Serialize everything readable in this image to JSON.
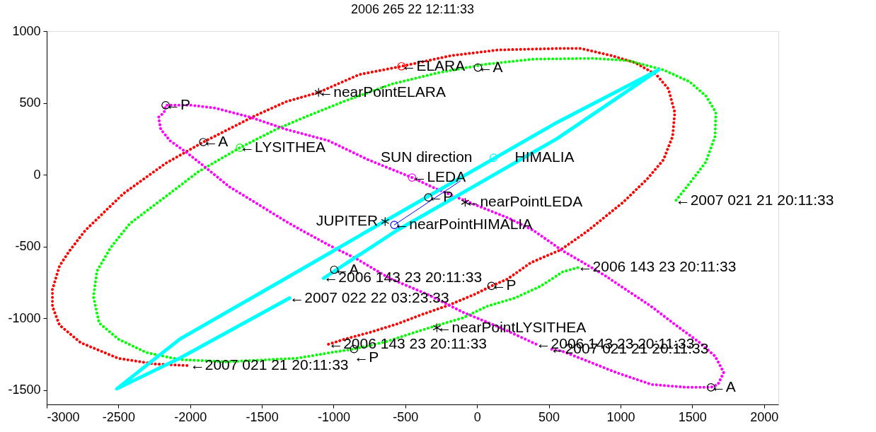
{
  "chart_data": {
    "type": "line",
    "title": "2006 265 22 12:11:33",
    "xlim": [
      -3000,
      2100
    ],
    "ylim": [
      -1600,
      1000
    ],
    "xticks": [
      -3000,
      -2500,
      -2000,
      -1500,
      -1000,
      -500,
      0,
      500,
      1000,
      1500,
      2000
    ],
    "yticks": [
      -1500,
      -1000,
      -500,
      0,
      500,
      1000
    ],
    "grid": false,
    "series": [
      {
        "line_style": "dotted",
        "color": "#ff0000",
        "x": [
          -1036,
          -922,
          -740,
          -562,
          -379,
          -196,
          -19,
          100,
          213,
          376,
          583,
          766,
          1018,
          1186,
          1299,
          1363,
          1378,
          1334,
          1250,
          1102,
          939,
          722,
          559,
          149,
          -182,
          -527,
          -823,
          -1105,
          -1332,
          -1549,
          -1909,
          -2171,
          -2467,
          -2733,
          -2847,
          -2911,
          -2960,
          -2960,
          -2911,
          -2763,
          -2501,
          -2250,
          -2000
        ],
        "values": [
          -1181,
          -1145,
          -1096,
          -1041,
          -972,
          -908,
          -834,
          -775,
          -726,
          -612,
          -523,
          -395,
          -192,
          -30,
          104,
          267,
          434,
          597,
          696,
          780,
          829,
          879,
          879,
          869,
          829,
          755,
          697,
          573,
          508,
          410,
          227,
          79,
          -133,
          -390,
          -538,
          -637,
          -800,
          -918,
          -1047,
          -1170,
          -1279,
          -1318,
          -1330
        ]
      },
      {
        "line_style": "dotted",
        "color": "#00ff00",
        "x": [
          702,
          598,
          445,
          263,
          65,
          -98,
          -266,
          -428,
          -641,
          -858,
          -1021,
          -1253,
          -1746,
          -2072,
          -2304,
          -2501,
          -2635,
          -2674,
          -2650,
          -2551,
          -2420,
          -2205,
          -1944,
          -1653,
          -1401,
          -1203,
          -922,
          -591,
          -266,
          65,
          396,
          806,
          1052,
          1299,
          1482,
          1595,
          1664,
          1659,
          1595,
          1482,
          1383
        ],
        "values": [
          -647,
          -676,
          -775,
          -859,
          -918,
          -997,
          -1046,
          -1096,
          -1165,
          -1214,
          -1239,
          -1278,
          -1303,
          -1288,
          -1239,
          -1145,
          -1032,
          -849,
          -671,
          -503,
          -340,
          -178,
          20,
          188,
          316,
          400,
          513,
          632,
          711,
          770,
          805,
          810,
          795,
          730,
          647,
          548,
          434,
          267,
          89,
          -59,
          -183
        ]
      },
      {
        "line_style": "dotted",
        "color": "#ff00ff",
        "x": [
          411,
          164,
          -98,
          -345,
          -611,
          -838,
          -1036,
          -1218,
          -1332,
          -1564,
          -1727,
          -1909,
          -2023,
          -2141,
          -2205,
          -2220,
          -2181,
          -2171,
          -1993,
          -1825,
          -1579,
          -1332,
          -1036,
          -759,
          -453,
          -295,
          -19,
          228,
          396,
          593,
          722,
          889,
          1052,
          1215,
          1383,
          1546,
          1659,
          1719,
          1679,
          1630,
          1462,
          1215,
          968,
          756,
          593,
          510
        ],
        "values": [
          -1180,
          -1066,
          -958,
          -834,
          -721,
          -587,
          -489,
          -390,
          -326,
          -183,
          -84,
          64,
          153,
          237,
          316,
          400,
          434,
          484,
          484,
          464,
          400,
          316,
          237,
          104,
          -20,
          -94,
          -207,
          -306,
          -390,
          -528,
          -602,
          -701,
          -810,
          -918,
          -1046,
          -1165,
          -1264,
          -1377,
          -1461,
          -1481,
          -1481,
          -1461,
          -1377,
          -1293,
          -1229,
          -1214
        ]
      },
      {
        "line_style": "solid",
        "color": "#00ffff",
        "x": [
          -1070,
          -562,
          559,
          1265,
          559,
          -759,
          -1332,
          -2072,
          -2511,
          -2072,
          -1307
        ],
        "values": [
          -721,
          -390,
          252,
          730,
          365,
          -390,
          -721,
          -1145,
          -1491,
          -1278,
          -859
        ]
      },
      {
        "line_style": "solid",
        "color": "#0000ff",
        "x": [
          -577,
          -117
        ],
        "values": [
          -350,
          -44
        ]
      },
      {
        "type": "scatter",
        "marker": "circle",
        "x": [
          -527,
          -453,
          -1653,
          115,
          -577
        ],
        "values": [
          755,
          -20,
          188,
          118,
          -350
        ],
        "colors": [
          "#ff0000",
          "#ff00ff",
          "#00ff00",
          "#00ffff",
          "#0000ff"
        ]
      },
      {
        "type": "scatter",
        "marker": "circle",
        "color": "#000000",
        "x": [
          -2171,
          -1909,
          6,
          -340,
          -996,
          100,
          -858,
          1630
        ],
        "values": [
          484,
          227,
          746,
          -158,
          -662,
          -775,
          -1214,
          -1481
        ]
      },
      {
        "type": "scatter",
        "marker": "cross",
        "color": "#000000",
        "x": [
          -1105,
          -83,
          -641,
          -280
        ],
        "values": [
          573,
          -192,
          -326,
          -1066
        ]
      }
    ],
    "annotations": [
      {
        "text": "←ELARA",
        "x": -527,
        "y": 755
      },
      {
        "text": "←A",
        "x": 6,
        "y": 746
      },
      {
        "text": "←nearPointELARA",
        "x": -1105,
        "y": 573
      },
      {
        "text": "←P",
        "x": -2171,
        "y": 484
      },
      {
        "text": "←A",
        "x": -1909,
        "y": 227
      },
      {
        "text": "←LYSITHEA",
        "x": -1653,
        "y": 188
      },
      {
        "text": "SUN direction",
        "x": 115,
        "y": 118
      },
      {
        "text": "HIMALIA",
        "x": 115,
        "y": 118
      },
      {
        "text": "←LEDA",
        "x": -453,
        "y": -20
      },
      {
        "text": "←P",
        "x": -340,
        "y": -158
      },
      {
        "text": "←nearPointLEDA",
        "x": -83,
        "y": -192
      },
      {
        "text": "JUPITER",
        "x": -641,
        "y": -326
      },
      {
        "text": "←nearPointHIMALIA",
        "x": -577,
        "y": -350
      },
      {
        "text": "←A",
        "x": -996,
        "y": -662
      },
      {
        "text": "←2006 143 23 20:11:33",
        "x": -1070,
        "y": -721
      },
      {
        "text": "←2007 022 22 03:23:33",
        "x": -1307,
        "y": -859
      },
      {
        "text": "←P",
        "x": 100,
        "y": -775
      },
      {
        "text": "←2006 143 23 20:11:33",
        "x": 702,
        "y": -647
      },
      {
        "text": "←2007 021 21 20:11:33",
        "x": 1383,
        "y": -183
      },
      {
        "text": "←nearPointLYSITHEA",
        "x": -280,
        "y": -1066
      },
      {
        "text": "←2006 143 23 20:11:33",
        "x": -1036,
        "y": -1181
      },
      {
        "text": "←P",
        "x": -858,
        "y": -1214
      },
      {
        "text": "←2006 143 23 20:11:33",
        "x": 411,
        "y": -1180
      },
      {
        "text": "←2007 021 21 20:11:33",
        "x": 510,
        "y": -1214
      },
      {
        "text": "←2007 021 21 20:11:33",
        "x": -2000,
        "y": -1330
      },
      {
        "text": "←A",
        "x": 1630,
        "y": -1481
      }
    ]
  }
}
